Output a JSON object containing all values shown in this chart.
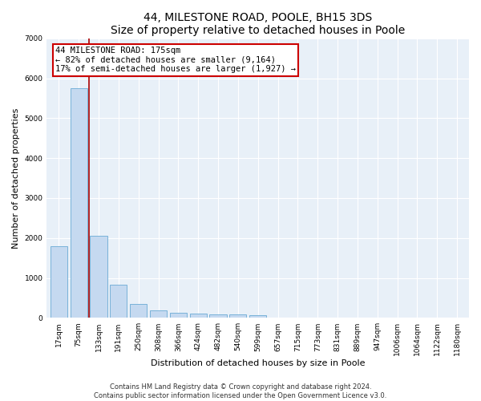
{
  "title": "44, MILESTONE ROAD, POOLE, BH15 3DS",
  "subtitle": "Size of property relative to detached houses in Poole",
  "xlabel": "Distribution of detached houses by size in Poole",
  "ylabel": "Number of detached properties",
  "categories": [
    "17sqm",
    "75sqm",
    "133sqm",
    "191sqm",
    "250sqm",
    "308sqm",
    "366sqm",
    "424sqm",
    "482sqm",
    "540sqm",
    "599sqm",
    "657sqm",
    "715sqm",
    "773sqm",
    "831sqm",
    "889sqm",
    "947sqm",
    "1006sqm",
    "1064sqm",
    "1122sqm",
    "1180sqm"
  ],
  "values": [
    1790,
    5750,
    2060,
    830,
    340,
    195,
    120,
    105,
    90,
    80,
    75,
    0,
    0,
    0,
    0,
    0,
    0,
    0,
    0,
    0,
    0
  ],
  "bar_color": "#c5d9f0",
  "bar_edge_color": "#6aaad4",
  "vline_color": "#aa0000",
  "annotation_text": "44 MILESTONE ROAD: 175sqm\n← 82% of detached houses are smaller (9,164)\n17% of semi-detached houses are larger (1,927) →",
  "annotation_box_color": "#ffffff",
  "annotation_box_edge": "#cc0000",
  "ylim": [
    0,
    7000
  ],
  "yticks": [
    0,
    1000,
    2000,
    3000,
    4000,
    5000,
    6000,
    7000
  ],
  "footnote1": "Contains HM Land Registry data © Crown copyright and database right 2024.",
  "footnote2": "Contains public sector information licensed under the Open Government Licence v3.0.",
  "background_color": "#e8f0f8",
  "grid_color": "#ffffff",
  "title_fontsize": 10,
  "subtitle_fontsize": 9,
  "axis_label_fontsize": 8,
  "tick_fontsize": 6.5,
  "annotation_fontsize": 7.5,
  "footnote_fontsize": 6
}
